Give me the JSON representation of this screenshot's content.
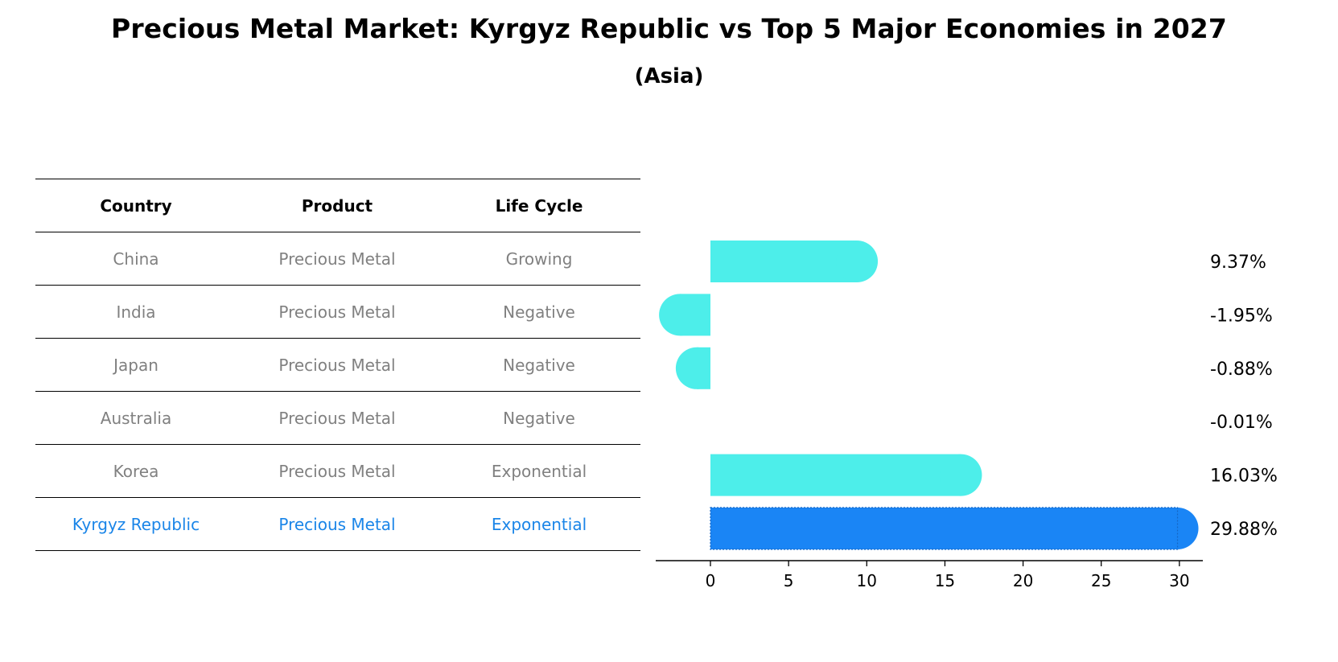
{
  "title": "Precious Metal Market: Kyrgyz Republic vs Top 5 Major Economies in 2027",
  "subtitle": "(Asia)",
  "colors": {
    "normal_bar": "#4deeea",
    "highlight_bar": "#1a85f5",
    "normal_text": "#808080",
    "highlight_text": "#1a85e8"
  },
  "table": {
    "headers": [
      "Country",
      "Product",
      "Life Cycle"
    ],
    "rows": [
      {
        "country": "China",
        "product": "Precious Metal",
        "life_cycle": "Growing"
      },
      {
        "country": "India",
        "product": "Precious Metal",
        "life_cycle": "Negative"
      },
      {
        "country": "Japan",
        "product": "Precious Metal",
        "life_cycle": "Negative"
      },
      {
        "country": "Australia",
        "product": "Precious Metal",
        "life_cycle": "Negative"
      },
      {
        "country": "Korea",
        "product": "Precious Metal",
        "life_cycle": "Exponential"
      },
      {
        "country": "Kyrgyz Republic",
        "product": "Precious Metal",
        "life_cycle": "Exponential"
      }
    ]
  },
  "chart_data": {
    "type": "bar",
    "orientation": "horizontal",
    "categories": [
      "China",
      "India",
      "Japan",
      "Australia",
      "Korea",
      "Kyrgyz Republic"
    ],
    "values": [
      9.37,
      -1.95,
      -0.88,
      -0.01,
      16.03,
      29.88
    ],
    "value_labels": [
      "9.37%",
      "-1.95%",
      "-0.88%",
      "-0.01%",
      "16.03%",
      "29.88%"
    ],
    "highlight": "Kyrgyz Republic",
    "xlim": [
      -3.5,
      31.5
    ],
    "xticks": [
      0,
      5,
      10,
      15,
      20,
      25,
      30
    ],
    "xtick_labels": [
      "0",
      "5",
      "10",
      "15",
      "20",
      "25",
      "30"
    ],
    "xlabel": "",
    "ylabel": "",
    "grid": false
  }
}
